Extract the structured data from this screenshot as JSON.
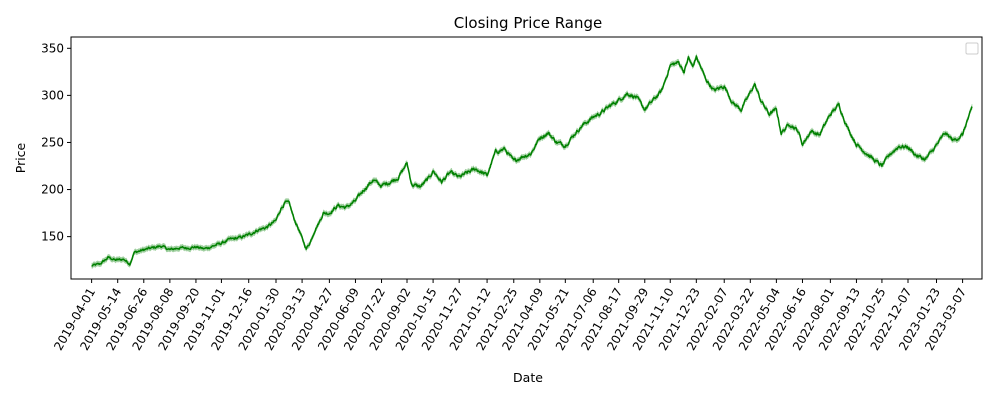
{
  "chart_data": {
    "type": "line",
    "title": "Closing Price Range",
    "xlabel": "Date",
    "ylabel": "Price",
    "line_color": "#008000",
    "band_color": "#7fbf7f",
    "legend": {
      "placement": "top-right",
      "entries": []
    },
    "grid": false,
    "x_range": [
      "2019-02-26",
      "2023-04-08"
    ],
    "ylim": [
      105,
      362
    ],
    "y_ticks": [
      150,
      200,
      250,
      300,
      350
    ],
    "x_ticks": [
      "2019-04-01",
      "2019-05-14",
      "2019-06-26",
      "2019-08-08",
      "2019-09-20",
      "2019-11-01",
      "2019-12-16",
      "2020-01-30",
      "2020-03-13",
      "2020-04-27",
      "2020-06-09",
      "2020-07-22",
      "2020-09-02",
      "2020-10-15",
      "2020-11-27",
      "2021-01-12",
      "2021-02-25",
      "2021-04-09",
      "2021-05-21",
      "2021-07-06",
      "2021-08-17",
      "2021-09-29",
      "2021-11-10",
      "2021-12-23",
      "2022-02-07",
      "2022-03-22",
      "2022-05-04",
      "2022-06-16",
      "2022-08-01",
      "2022-09-13",
      "2022-10-25",
      "2022-12-07",
      "2023-01-23",
      "2023-03-07"
    ],
    "series": [
      {
        "values": [
          [
            "2019-04-01",
            119
          ],
          [
            "2019-04-15",
            121
          ],
          [
            "2019-04-29",
            128
          ],
          [
            "2019-05-10",
            125
          ],
          [
            "2019-05-24",
            126
          ],
          [
            "2019-06-03",
            121
          ],
          [
            "2019-06-10",
            133
          ],
          [
            "2019-06-26",
            136
          ],
          [
            "2019-07-10",
            138
          ],
          [
            "2019-07-24",
            140
          ],
          [
            "2019-08-08",
            136
          ],
          [
            "2019-08-22",
            138
          ],
          [
            "2019-09-05",
            138
          ],
          [
            "2019-09-20",
            139
          ],
          [
            "2019-10-04",
            137
          ],
          [
            "2019-10-18",
            140
          ],
          [
            "2019-11-01",
            143
          ],
          [
            "2019-11-15",
            147
          ],
          [
            "2019-12-02",
            149
          ],
          [
            "2019-12-16",
            152
          ],
          [
            "2019-12-31",
            157
          ],
          [
            "2020-01-15",
            160
          ],
          [
            "2020-01-30",
            167
          ],
          [
            "2020-02-07",
            180
          ],
          [
            "2020-02-14",
            186
          ],
          [
            "2020-02-21",
            185
          ],
          [
            "2020-02-28",
            170
          ],
          [
            "2020-03-06",
            160
          ],
          [
            "2020-03-13",
            148
          ],
          [
            "2020-03-20",
            137
          ],
          [
            "2020-03-27",
            145
          ],
          [
            "2020-04-03",
            157
          ],
          [
            "2020-04-10",
            165
          ],
          [
            "2020-04-17",
            175
          ],
          [
            "2020-04-27",
            175
          ],
          [
            "2020-05-11",
            183
          ],
          [
            "2020-05-25",
            181
          ],
          [
            "2020-06-09",
            188
          ],
          [
            "2020-06-23",
            200
          ],
          [
            "2020-07-08",
            210
          ],
          [
            "2020-07-22",
            204
          ],
          [
            "2020-08-05",
            208
          ],
          [
            "2020-08-19",
            213
          ],
          [
            "2020-09-02",
            228
          ],
          [
            "2020-09-10",
            205
          ],
          [
            "2020-09-24",
            203
          ],
          [
            "2020-10-08",
            212
          ],
          [
            "2020-10-15",
            220
          ],
          [
            "2020-10-29",
            208
          ],
          [
            "2020-11-12",
            218
          ],
          [
            "2020-11-27",
            213
          ],
          [
            "2020-12-11",
            218
          ],
          [
            "2020-12-24",
            222
          ],
          [
            "2021-01-12",
            215
          ],
          [
            "2021-01-26",
            240
          ],
          [
            "2021-02-10",
            243
          ],
          [
            "2021-02-25",
            230
          ],
          [
            "2021-03-11",
            235
          ],
          [
            "2021-03-25",
            238
          ],
          [
            "2021-04-09",
            255
          ],
          [
            "2021-04-23",
            260
          ],
          [
            "2021-05-07",
            250
          ],
          [
            "2021-05-21",
            247
          ],
          [
            "2021-06-04",
            258
          ],
          [
            "2021-06-18",
            268
          ],
          [
            "2021-07-06",
            277
          ],
          [
            "2021-07-20",
            282
          ],
          [
            "2021-08-03",
            289
          ],
          [
            "2021-08-17",
            295
          ],
          [
            "2021-08-31",
            302
          ],
          [
            "2021-09-15",
            298
          ],
          [
            "2021-09-29",
            285
          ],
          [
            "2021-10-13",
            295
          ],
          [
            "2021-10-27",
            305
          ],
          [
            "2021-11-10",
            332
          ],
          [
            "2021-11-24",
            335
          ],
          [
            "2021-12-03",
            325
          ],
          [
            "2021-12-10",
            340
          ],
          [
            "2021-12-17",
            330
          ],
          [
            "2021-12-23",
            341
          ],
          [
            "2022-01-07",
            318
          ],
          [
            "2022-01-21",
            305
          ],
          [
            "2022-02-07",
            310
          ],
          [
            "2022-02-21",
            292
          ],
          [
            "2022-03-07",
            285
          ],
          [
            "2022-03-22",
            303
          ],
          [
            "2022-03-29",
            312
          ],
          [
            "2022-04-08",
            295
          ],
          [
            "2022-04-22",
            280
          ],
          [
            "2022-05-04",
            285
          ],
          [
            "2022-05-12",
            260
          ],
          [
            "2022-05-26",
            270
          ],
          [
            "2022-06-09",
            262
          ],
          [
            "2022-06-16",
            248
          ],
          [
            "2022-06-30",
            262
          ],
          [
            "2022-07-14",
            258
          ],
          [
            "2022-08-01",
            280
          ],
          [
            "2022-08-15",
            290
          ],
          [
            "2022-08-29",
            266
          ],
          [
            "2022-09-13",
            248
          ],
          [
            "2022-09-27",
            240
          ],
          [
            "2022-10-11",
            232
          ],
          [
            "2022-10-25",
            225
          ],
          [
            "2022-11-08",
            238
          ],
          [
            "2022-11-22",
            246
          ],
          [
            "2022-12-07",
            245
          ],
          [
            "2022-12-21",
            236
          ],
          [
            "2023-01-05",
            232
          ],
          [
            "2023-01-23",
            247
          ],
          [
            "2023-02-06",
            260
          ],
          [
            "2023-02-20",
            252
          ],
          [
            "2023-03-07",
            258
          ],
          [
            "2023-03-14",
            272
          ],
          [
            "2023-03-21",
            283
          ],
          [
            "2023-03-23",
            288
          ]
        ],
        "band_half_width": 3
      }
    ]
  }
}
